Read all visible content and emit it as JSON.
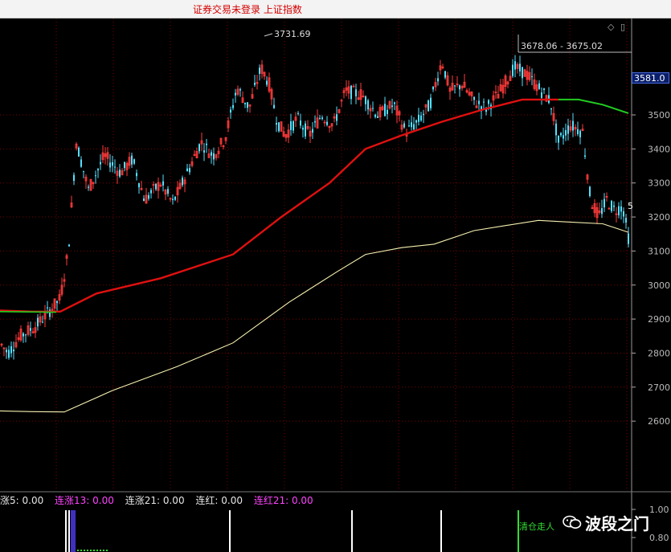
{
  "window": {
    "title": "证券交易未登录  上证指数"
  },
  "controls": {
    "diamond": "◇",
    "restore": "▯"
  },
  "chart": {
    "high_marker": "3731.69",
    "range_marker": "3678.06 - 3675.02",
    "current_price_tag": "3581.0",
    "side_label": "5",
    "y_ticks": [
      "3500",
      "3400",
      "3300",
      "3200",
      "3100",
      "3000",
      "2900",
      "2800",
      "2700",
      "2600"
    ],
    "sub_ticks": [
      "1.00",
      "0.80"
    ],
    "colors": {
      "bg": "#000000",
      "grid": "#7a0000",
      "up": "#ff3b3b",
      "down": "#55e0ff",
      "ma_long_red": "#e01010",
      "ma_green": "#22cc22",
      "ma_yellow": "#f5f0b0",
      "axis_text": "#bbbbbb"
    }
  },
  "indicator": {
    "items": [
      {
        "text": "涨5: 0.00",
        "color": "white"
      },
      {
        "text": "连涨13: 0.00",
        "color": "magenta"
      },
      {
        "text": "连涨21: 0.00",
        "color": "white"
      },
      {
        "text": "连红: 0.00",
        "color": "white"
      },
      {
        "text": "连红21: 0.00",
        "color": "magenta"
      }
    ],
    "signal_label": "清仓走人"
  },
  "watermark": {
    "text": "波段之门"
  }
}
